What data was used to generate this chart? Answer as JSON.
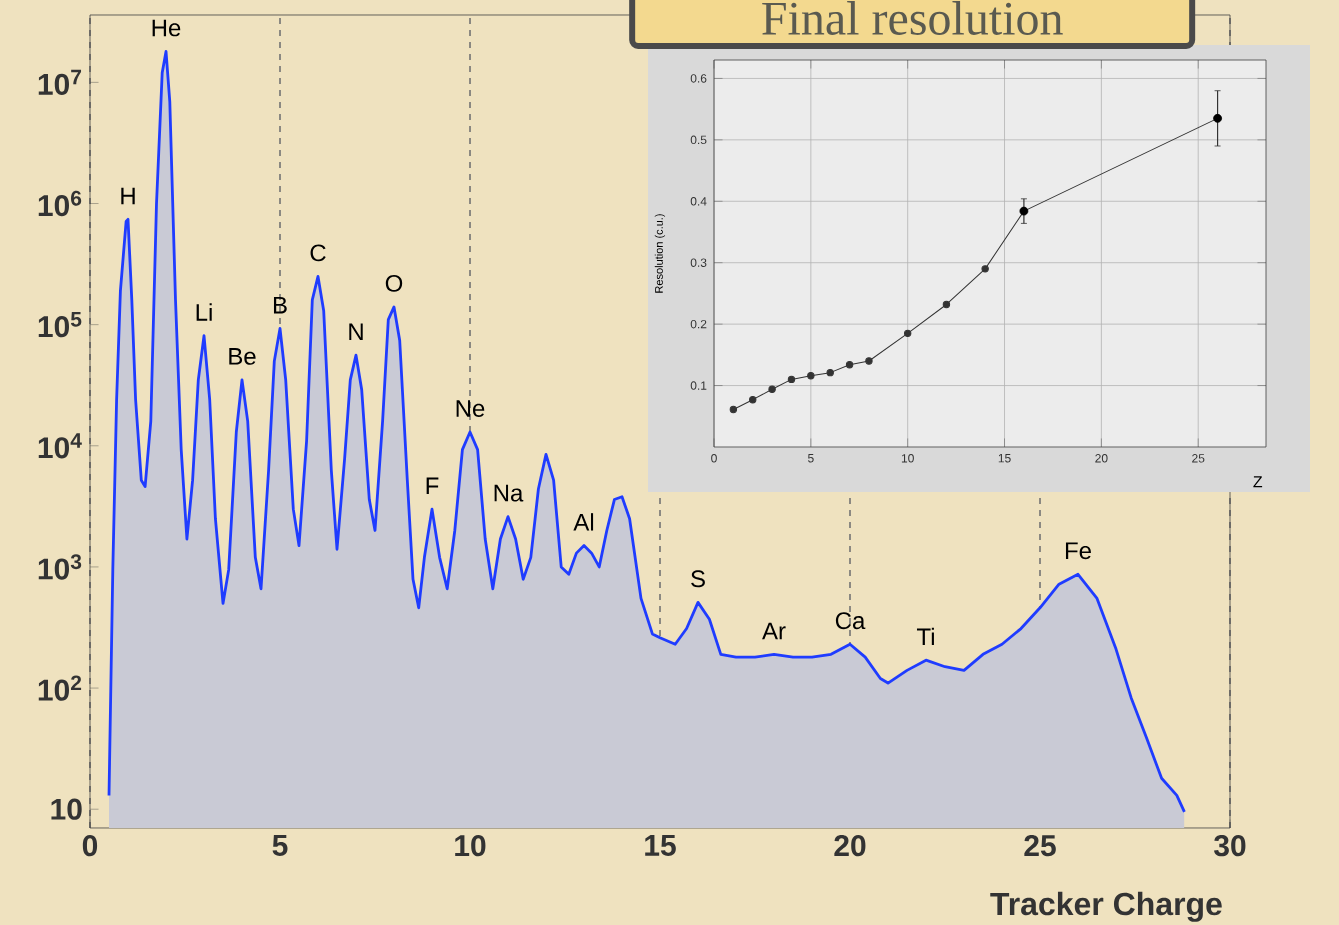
{
  "chart_data": [
    {
      "type": "area",
      "xlabel": "Tracker Charge",
      "color": "#1f3cff",
      "log": "y",
      "grid": "x",
      "xlim": [
        0,
        30
      ],
      "ylim": [
        7,
        36000000
      ],
      "xticks": [
        0,
        5,
        10,
        15,
        20,
        25,
        30
      ],
      "yticks": [
        10,
        {
          "value": 100,
          "label": "10$^{2}$"
        },
        {
          "value": 1000,
          "label": "10$^{3}$"
        },
        {
          "value": 10000,
          "label": "10$^{4}$"
        },
        {
          "value": 100000,
          "label": "10$^{5}$"
        },
        {
          "value": 1000000,
          "label": "10$^{6}$"
        },
        {
          "value": 10000000,
          "label": "10$^{7}$"
        }
      ],
      "x": [
        0.5,
        0.6,
        0.7,
        0.8,
        0.95,
        1.0,
        1.1,
        1.2,
        1.35,
        1.45,
        1.6,
        1.75,
        1.9,
        2.0,
        2.1,
        2.25,
        2.4,
        2.55,
        2.7,
        2.85,
        3.0,
        3.15,
        3.3,
        3.5,
        3.65,
        3.85,
        4.0,
        4.15,
        4.35,
        4.5,
        4.7,
        4.85,
        5.0,
        5.15,
        5.35,
        5.5,
        5.7,
        5.85,
        6.0,
        6.15,
        6.35,
        6.5,
        6.7,
        6.85,
        7.0,
        7.15,
        7.35,
        7.5,
        7.7,
        7.85,
        8.0,
        8.15,
        8.35,
        8.5,
        8.65,
        8.8,
        9.0,
        9.2,
        9.4,
        9.6,
        9.8,
        10.0,
        10.2,
        10.4,
        10.6,
        10.8,
        11.0,
        11.2,
        11.4,
        11.6,
        11.8,
        12.0,
        12.2,
        12.4,
        12.6,
        12.8,
        13.0,
        13.2,
        13.4,
        13.6,
        13.8,
        14.0,
        14.2,
        14.5,
        14.8,
        15.0,
        15.4,
        15.7,
        16.0,
        16.3,
        16.6,
        17.0,
        17.5,
        18.0,
        18.5,
        19.0,
        19.5,
        20.0,
        20.4,
        20.8,
        21.0,
        21.5,
        22.0,
        22.5,
        23.0,
        23.5,
        24.0,
        24.5,
        25.0,
        25.5,
        26.0,
        26.5,
        27.0,
        27.4,
        27.8,
        28.2,
        28.6,
        28.8
      ],
      "values": [
        13,
        950,
        24000,
        190000,
        710000,
        740000,
        160000,
        24000,
        5200,
        4600,
        16000,
        1000000,
        12000000,
        18000000,
        6900000,
        160000,
        9300,
        1700,
        5200,
        35000,
        81000,
        24000,
        2500,
        500,
        950,
        13000,
        35000,
        16000,
        1200,
        660,
        6300,
        50000,
        93000,
        35000,
        3000,
        1500,
        11000,
        160000,
        250000,
        130000,
        6300,
        1400,
        7800,
        35000,
        56000,
        29000,
        3600,
        2000,
        16000,
        110000,
        140000,
        74000,
        5200,
        790,
        460,
        1200,
        3000,
        1200,
        660,
        2000,
        9300,
        13000,
        9300,
        1700,
        660,
        1700,
        2600,
        1700,
        790,
        1200,
        4400,
        8500,
        5200,
        1000,
        870,
        1300,
        1500,
        1300,
        1000,
        2000,
        3600,
        3800,
        2500,
        550,
        280,
        260,
        230,
        310,
        510,
        370,
        190,
        180,
        180,
        190,
        180,
        180,
        190,
        230,
        180,
        120,
        110,
        140,
        170,
        150,
        140,
        190,
        230,
        310,
        460,
        720,
        870,
        550,
        210,
        83,
        39,
        18,
        13,
        9.5
      ],
      "annotations": [
        {
          "text": "H",
          "x": 1,
          "y": 740000
        },
        {
          "text": "He",
          "x": 2,
          "y": 18000000
        },
        {
          "text": "Li",
          "x": 3,
          "y": 81000
        },
        {
          "text": "Be",
          "x": 4,
          "y": 35000
        },
        {
          "text": "B",
          "x": 5,
          "y": 93000
        },
        {
          "text": "C",
          "x": 6,
          "y": 250000
        },
        {
          "text": "N",
          "x": 7,
          "y": 56000
        },
        {
          "text": "O",
          "x": 8,
          "y": 140000
        },
        {
          "text": "F",
          "x": 9,
          "y": 3000
        },
        {
          "text": "Ne",
          "x": 10,
          "y": 13000
        },
        {
          "text": "Na",
          "x": 11,
          "y": 2600
        },
        {
          "text": "Al",
          "x": 13,
          "y": 1500
        },
        {
          "text": "S",
          "x": 16,
          "y": 510
        },
        {
          "text": "Ar",
          "x": 18,
          "y": 190
        },
        {
          "text": "Ca",
          "x": 20,
          "y": 230
        },
        {
          "text": "Ti",
          "x": 22,
          "y": 170
        },
        {
          "text": "Fe",
          "x": 26,
          "y": 870
        }
      ]
    },
    {
      "type": "line",
      "title": "Final resolution",
      "xlabel": "Z",
      "ylabel": "Resolution (c.u.)",
      "color": "#333333",
      "marker": "circle",
      "grid": true,
      "xlim": [
        0,
        28.5
      ],
      "ylim": [
        0,
        0.63
      ],
      "xticks": [
        0,
        5,
        10,
        15,
        20,
        25
      ],
      "yticks": [
        0.1,
        0.2,
        0.3,
        0.4,
        0.5,
        0.6
      ],
      "x": [
        1,
        2,
        3,
        4,
        5,
        6,
        7,
        8,
        10,
        12,
        14,
        16,
        26
      ],
      "values": [
        0.061,
        0.077,
        0.094,
        0.11,
        0.116,
        0.121,
        0.134,
        0.14,
        0.185,
        0.232,
        0.29,
        0.384,
        0.535
      ],
      "errors": [
        null,
        null,
        null,
        null,
        null,
        null,
        null,
        null,
        null,
        null,
        null,
        0.02,
        0.045
      ]
    }
  ]
}
